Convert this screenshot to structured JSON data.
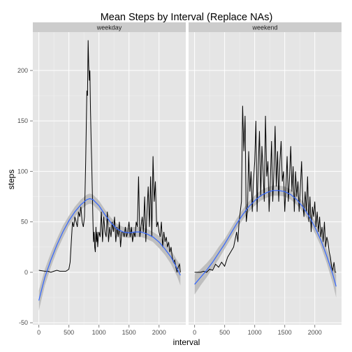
{
  "chart_data": {
    "type": "line",
    "title": "Mean Steps by Interval (Replace NAs)",
    "xlabel": "interval",
    "ylabel": "steps",
    "xlim": [
      -100,
      2445
    ],
    "ylim": [
      -52,
      238
    ],
    "x_ticks": [
      0,
      500,
      1000,
      1500,
      2000
    ],
    "y_ticks": [
      -50,
      0,
      50,
      100,
      150,
      200
    ],
    "grid": true,
    "colors": {
      "panel": "#e5e5e5",
      "strip": "#cccccc",
      "grid": "#ffffff",
      "raw": "#000000",
      "smooth": "#3366ff",
      "band": "#b0b0b0"
    },
    "panels": [
      {
        "facet": "weekday",
        "series_raw": {
          "x": [
            0,
            100,
            150,
            200,
            250,
            300,
            350,
            400,
            450,
            500,
            520,
            540,
            560,
            580,
            600,
            620,
            640,
            660,
            680,
            700,
            720,
            740,
            760,
            780,
            800,
            810,
            820,
            830,
            840,
            850,
            860,
            870,
            880,
            890,
            900,
            910,
            920,
            930,
            940,
            950,
            960,
            970,
            980,
            990,
            1000,
            1020,
            1040,
            1060,
            1080,
            1100,
            1120,
            1140,
            1160,
            1180,
            1200,
            1220,
            1240,
            1260,
            1280,
            1300,
            1320,
            1340,
            1360,
            1380,
            1400,
            1420,
            1440,
            1460,
            1480,
            1500,
            1520,
            1540,
            1560,
            1580,
            1600,
            1620,
            1640,
            1660,
            1680,
            1700,
            1720,
            1740,
            1760,
            1780,
            1800,
            1820,
            1840,
            1860,
            1880,
            1900,
            1920,
            1940,
            1960,
            1980,
            2000,
            2020,
            2040,
            2060,
            2080,
            2100,
            2120,
            2140,
            2160,
            2180,
            2200,
            2220,
            2240,
            2260,
            2280,
            2300,
            2320,
            2340,
            2355
          ],
          "y": [
            2,
            1,
            1,
            0,
            1,
            2,
            1,
            1,
            1,
            3,
            10,
            30,
            50,
            45,
            55,
            50,
            45,
            60,
            55,
            65,
            50,
            45,
            55,
            110,
            180,
            175,
            230,
            205,
            190,
            200,
            160,
            130,
            110,
            80,
            50,
            30,
            40,
            25,
            20,
            45,
            30,
            40,
            25,
            35,
            40,
            35,
            60,
            30,
            55,
            40,
            35,
            60,
            30,
            45,
            35,
            50,
            40,
            55,
            30,
            45,
            35,
            50,
            25,
            40,
            40,
            35,
            45,
            35,
            40,
            50,
            35,
            45,
            30,
            40,
            35,
            50,
            45,
            95,
            35,
            45,
            55,
            40,
            75,
            30,
            60,
            85,
            45,
            95,
            35,
            115,
            70,
            90,
            45,
            50,
            40,
            35,
            50,
            25,
            40,
            30,
            35,
            25,
            30,
            20,
            25,
            15,
            10,
            12,
            5,
            0,
            5,
            8,
            0
          ]
        },
        "series_smooth": {
          "x": [
            0,
            100,
            200,
            300,
            400,
            500,
            600,
            700,
            800,
            850,
            900,
            1000,
            1100,
            1200,
            1300,
            1400,
            1500,
            1600,
            1700,
            1800,
            1900,
            2000,
            2100,
            2200,
            2300,
            2355
          ],
          "y": [
            -28,
            -5,
            12,
            27,
            40,
            51,
            60,
            67,
            72,
            73,
            72,
            66,
            57,
            49,
            43,
            40,
            39,
            40,
            40,
            38,
            35,
            30,
            23,
            15,
            4,
            -3
          ]
        },
        "band_halfwidth": [
          10,
          8,
          7,
          6,
          6,
          5,
          5,
          5,
          5,
          5,
          5,
          5,
          5,
          5,
          5,
          5,
          5,
          5,
          5,
          5,
          5,
          6,
          6,
          7,
          8,
          10
        ]
      },
      {
        "facet": "weekend",
        "series_raw": {
          "x": [
            0,
            100,
            150,
            200,
            250,
            300,
            350,
            400,
            450,
            500,
            550,
            600,
            650,
            700,
            720,
            740,
            760,
            780,
            800,
            820,
            840,
            860,
            880,
            900,
            920,
            940,
            960,
            980,
            1000,
            1020,
            1040,
            1060,
            1080,
            1100,
            1120,
            1140,
            1160,
            1180,
            1200,
            1220,
            1240,
            1260,
            1280,
            1300,
            1320,
            1340,
            1360,
            1380,
            1400,
            1420,
            1440,
            1460,
            1480,
            1500,
            1520,
            1540,
            1560,
            1580,
            1600,
            1620,
            1640,
            1660,
            1680,
            1700,
            1720,
            1740,
            1760,
            1780,
            1800,
            1820,
            1840,
            1860,
            1880,
            1900,
            1920,
            1940,
            1960,
            1980,
            2000,
            2020,
            2040,
            2060,
            2080,
            2100,
            2120,
            2140,
            2160,
            2180,
            2200,
            2220,
            2240,
            2260,
            2280,
            2300,
            2320,
            2340,
            2355
          ],
          "y": [
            0,
            0,
            1,
            0,
            3,
            2,
            8,
            5,
            10,
            6,
            15,
            20,
            25,
            40,
            30,
            50,
            60,
            70,
            165,
            120,
            155,
            50,
            60,
            120,
            80,
            100,
            60,
            90,
            110,
            150,
            60,
            105,
            140,
            75,
            125,
            100,
            70,
            155,
            95,
            110,
            60,
            90,
            130,
            70,
            100,
            145,
            85,
            120,
            70,
            110,
            130,
            90,
            100,
            60,
            85,
            115,
            70,
            95,
            125,
            80,
            105,
            60,
            100,
            75,
            90,
            60,
            85,
            110,
            70,
            55,
            80,
            60,
            95,
            50,
            75,
            40,
            65,
            55,
            70,
            45,
            60,
            40,
            55,
            35,
            45,
            30,
            50,
            25,
            35,
            30,
            20,
            15,
            5,
            2,
            10,
            0,
            0
          ]
        },
        "series_smooth": {
          "x": [
            0,
            100,
            200,
            300,
            400,
            500,
            600,
            700,
            800,
            900,
            1000,
            1100,
            1200,
            1300,
            1400,
            1500,
            1600,
            1700,
            1800,
            1900,
            2000,
            2100,
            2200,
            2300,
            2355
          ],
          "y": [
            -12,
            -5,
            2,
            10,
            19,
            28,
            38,
            48,
            57,
            65,
            71,
            76,
            79,
            81,
            81,
            80,
            77,
            72,
            65,
            56,
            45,
            32,
            16,
            -2,
            -14
          ]
        },
        "band_halfwidth": [
          10,
          8,
          7,
          6,
          6,
          5,
          5,
          5,
          5,
          5,
          5,
          5,
          5,
          5,
          5,
          5,
          5,
          5,
          5,
          5,
          6,
          6,
          7,
          9,
          11
        ]
      }
    ]
  }
}
